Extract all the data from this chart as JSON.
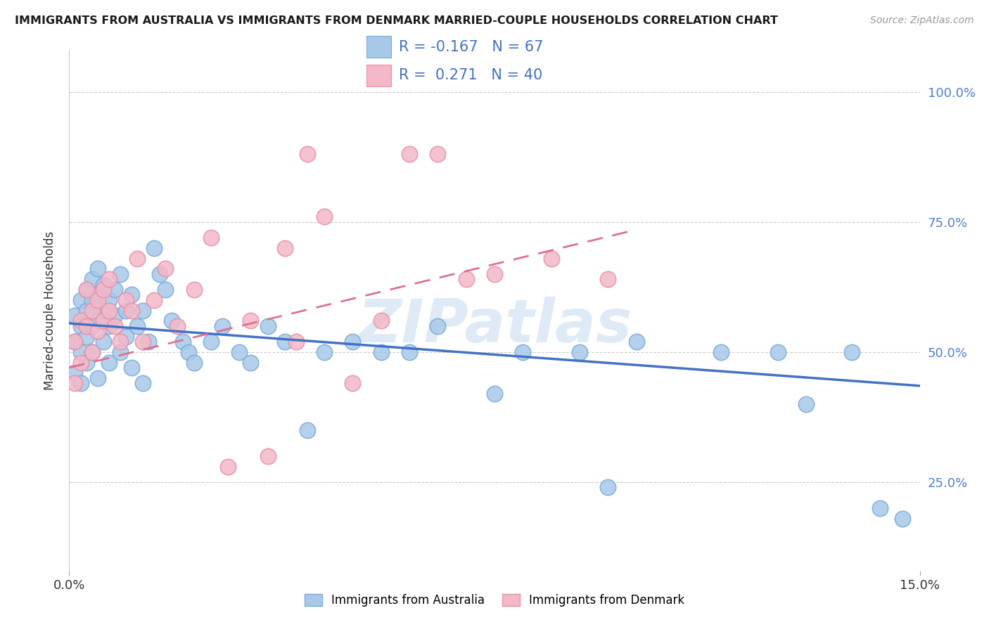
{
  "title": "IMMIGRANTS FROM AUSTRALIA VS IMMIGRANTS FROM DENMARK MARRIED-COUPLE HOUSEHOLDS CORRELATION CHART",
  "source": "Source: ZipAtlas.com",
  "ylabel": "Married-couple Households",
  "ytick_positions": [
    0.25,
    0.5,
    0.75,
    1.0
  ],
  "xlim": [
    0.0,
    0.15
  ],
  "ylim": [
    0.08,
    1.08
  ],
  "legend_label_1": "Immigrants from Australia",
  "legend_label_2": "Immigrants from Denmark",
  "R1": -0.167,
  "N1": 67,
  "R2": 0.271,
  "N2": 40,
  "color_australia_fill": "#a8c8e8",
  "color_australia_edge": "#7aabdc",
  "color_denmark_fill": "#f4b8c8",
  "color_denmark_edge": "#e890a8",
  "color_line_australia": "#4472c4",
  "color_line_denmark": "#e07090",
  "color_right_ticks": "#5080d0",
  "color_text_legend": "#4472c4",
  "watermark_color": "#c8ddf0",
  "line_aus_x0": 0.0,
  "line_aus_x1": 0.15,
  "line_aus_y0": 0.555,
  "line_aus_y1": 0.435,
  "line_den_x0": 0.0,
  "line_den_x1": 0.1,
  "line_den_y0": 0.47,
  "line_den_y1": 0.735,
  "aus_x": [
    0.001,
    0.001,
    0.001,
    0.002,
    0.002,
    0.002,
    0.002,
    0.003,
    0.003,
    0.003,
    0.003,
    0.004,
    0.004,
    0.004,
    0.004,
    0.005,
    0.005,
    0.005,
    0.005,
    0.006,
    0.006,
    0.006,
    0.007,
    0.007,
    0.007,
    0.008,
    0.008,
    0.009,
    0.009,
    0.01,
    0.01,
    0.011,
    0.011,
    0.012,
    0.013,
    0.013,
    0.014,
    0.015,
    0.016,
    0.017,
    0.018,
    0.02,
    0.021,
    0.022,
    0.025,
    0.027,
    0.03,
    0.032,
    0.035,
    0.038,
    0.042,
    0.045,
    0.05,
    0.055,
    0.06,
    0.065,
    0.075,
    0.08,
    0.09,
    0.095,
    0.1,
    0.115,
    0.125,
    0.13,
    0.138,
    0.143,
    0.147
  ],
  "aus_y": [
    0.57,
    0.52,
    0.46,
    0.6,
    0.55,
    0.5,
    0.44,
    0.62,
    0.58,
    0.53,
    0.48,
    0.64,
    0.6,
    0.55,
    0.5,
    0.66,
    0.61,
    0.56,
    0.45,
    0.63,
    0.58,
    0.52,
    0.6,
    0.55,
    0.48,
    0.62,
    0.57,
    0.65,
    0.5,
    0.58,
    0.53,
    0.61,
    0.47,
    0.55,
    0.58,
    0.44,
    0.52,
    0.7,
    0.65,
    0.62,
    0.56,
    0.52,
    0.5,
    0.48,
    0.52,
    0.55,
    0.5,
    0.48,
    0.55,
    0.52,
    0.35,
    0.5,
    0.52,
    0.5,
    0.5,
    0.55,
    0.42,
    0.5,
    0.5,
    0.24,
    0.52,
    0.5,
    0.5,
    0.4,
    0.5,
    0.2,
    0.18
  ],
  "den_x": [
    0.001,
    0.001,
    0.002,
    0.002,
    0.003,
    0.003,
    0.004,
    0.004,
    0.005,
    0.005,
    0.006,
    0.006,
    0.007,
    0.007,
    0.008,
    0.009,
    0.01,
    0.011,
    0.012,
    0.013,
    0.015,
    0.017,
    0.019,
    0.022,
    0.025,
    0.028,
    0.032,
    0.035,
    0.038,
    0.04,
    0.042,
    0.045,
    0.05,
    0.055,
    0.06,
    0.065,
    0.07,
    0.075,
    0.085,
    0.095
  ],
  "den_y": [
    0.52,
    0.44,
    0.56,
    0.48,
    0.55,
    0.62,
    0.58,
    0.5,
    0.6,
    0.54,
    0.62,
    0.56,
    0.64,
    0.58,
    0.55,
    0.52,
    0.6,
    0.58,
    0.68,
    0.52,
    0.6,
    0.66,
    0.55,
    0.62,
    0.72,
    0.28,
    0.56,
    0.3,
    0.7,
    0.52,
    0.88,
    0.76,
    0.44,
    0.56,
    0.88,
    0.88,
    0.64,
    0.65,
    0.68,
    0.64
  ]
}
